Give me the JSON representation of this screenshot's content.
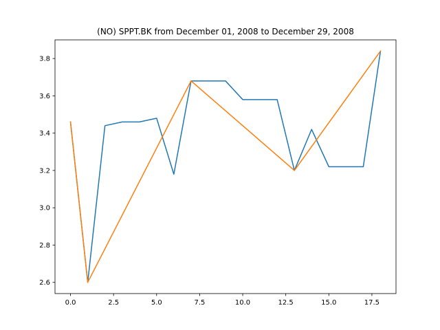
{
  "chart_data": {
    "type": "line",
    "title": "(NO) SPPT.BK from December 01, 2008 to December 29, 2008",
    "xlabel": "",
    "ylabel": "",
    "xlim": [
      -0.9,
      18.9
    ],
    "ylim": [
      2.54,
      3.9
    ],
    "x_ticks": [
      0.0,
      2.5,
      5.0,
      7.5,
      10.0,
      12.5,
      15.0,
      17.5
    ],
    "x_tick_labels": [
      "0.0",
      "2.5",
      "5.0",
      "7.5",
      "10.0",
      "12.5",
      "15.0",
      "17.5"
    ],
    "y_ticks": [
      2.6,
      2.8,
      3.0,
      3.2,
      3.4,
      3.6,
      3.8
    ],
    "y_tick_labels": [
      "2.6",
      "2.8",
      "3.0",
      "3.2",
      "3.4",
      "3.6",
      "3.8"
    ],
    "grid": false,
    "series": [
      {
        "color": "#1f77b4",
        "x": [
          0,
          1,
          2,
          3,
          4,
          5,
          6,
          7,
          8,
          9,
          10,
          11,
          12,
          13,
          14,
          15,
          16,
          17,
          18
        ],
        "y": [
          3.46,
          2.6,
          3.44,
          3.46,
          3.46,
          3.48,
          3.18,
          3.68,
          3.68,
          3.68,
          3.58,
          3.58,
          3.58,
          3.2,
          3.42,
          3.22,
          3.22,
          3.22,
          3.84
        ]
      },
      {
        "color": "#ff7f0e",
        "x": [
          0,
          1,
          7,
          13,
          18
        ],
        "y": [
          3.46,
          2.6,
          3.68,
          3.2,
          3.84
        ]
      }
    ]
  }
}
